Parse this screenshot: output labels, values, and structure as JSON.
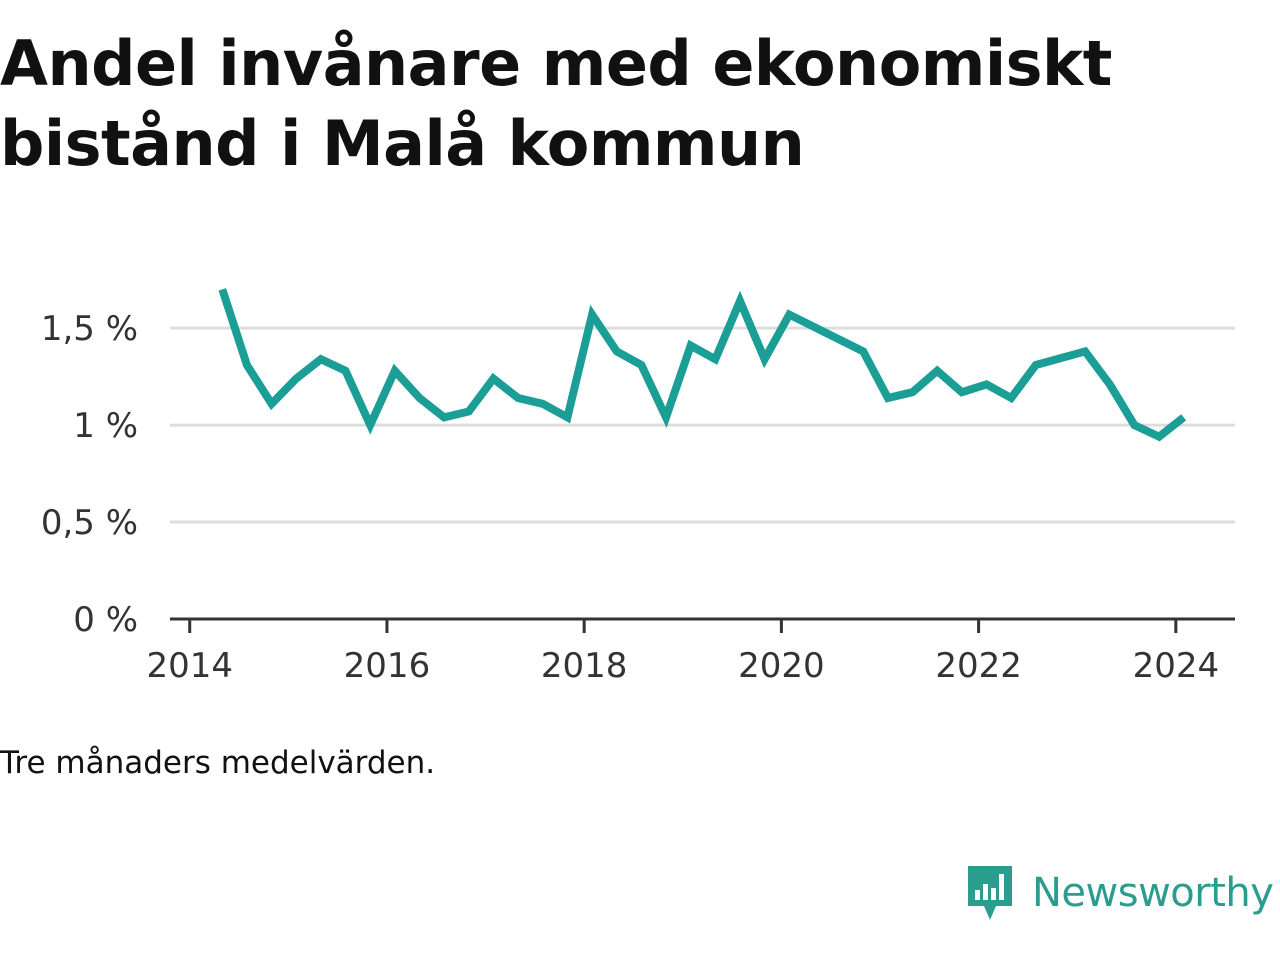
{
  "header": {
    "title": "Andel invånare med ekonomiskt bistånd i Malå kommun"
  },
  "footer": {
    "note": "Tre månaders medelvärden.",
    "brand": "Newsworthy"
  },
  "colors": {
    "line": "#1a9e95",
    "grid": "#dddddd",
    "axis": "#333333",
    "brand": "#2a9d8f"
  },
  "chart_data": {
    "type": "line",
    "title": "Andel invånare med ekonomiskt bistånd i Malå kommun",
    "xlabel": "",
    "ylabel": "",
    "xlim": [
      2013.8,
      2024.6
    ],
    "ylim": [
      0,
      1.8
    ],
    "x_ticks": [
      2014,
      2016,
      2018,
      2020,
      2022,
      2024
    ],
    "x_tick_labels": [
      "2014",
      "2016",
      "2018",
      "2020",
      "2022",
      "2024"
    ],
    "y_ticks": [
      0,
      0.5,
      1,
      1.5
    ],
    "y_tick_labels": [
      "0 %",
      "0,5 %",
      "1 %",
      "1,5 %"
    ],
    "grid": true,
    "legend": "none",
    "series": [
      {
        "x": [
          2014.33,
          2014.58,
          2014.83,
          2015.08,
          2015.33,
          2015.58,
          2015.83,
          2016.08,
          2016.33,
          2016.58,
          2016.83,
          2017.08,
          2017.33,
          2017.58,
          2017.83,
          2018.08,
          2018.33,
          2018.58,
          2018.83,
          2019.08,
          2019.33,
          2019.58,
          2019.83,
          2020.08,
          2020.83,
          2021.08,
          2021.33,
          2021.58,
          2021.83,
          2022.08,
          2022.33,
          2022.58,
          2023.08,
          2023.33,
          2023.58,
          2023.83,
          2024.08
        ],
        "values": [
          1.7,
          1.31,
          1.11,
          1.24,
          1.34,
          1.28,
          1.0,
          1.28,
          1.14,
          1.04,
          1.07,
          1.24,
          1.14,
          1.11,
          1.04,
          1.57,
          1.38,
          1.31,
          1.04,
          1.41,
          1.34,
          1.64,
          1.34,
          1.57,
          1.38,
          1.14,
          1.17,
          1.28,
          1.17,
          1.21,
          1.14,
          1.31,
          1.38,
          1.21,
          1.0,
          0.94,
          1.04
        ]
      }
    ]
  }
}
